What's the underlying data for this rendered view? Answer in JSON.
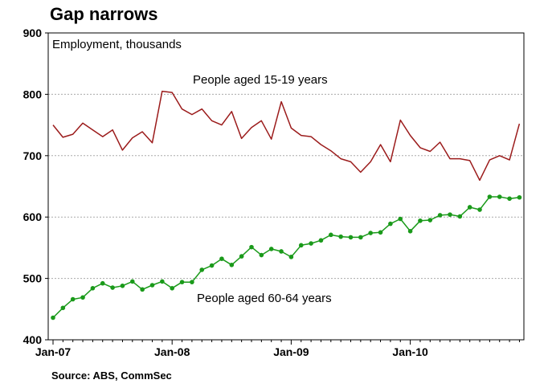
{
  "title": "Gap narrows",
  "source": "Source: ABS, CommSec",
  "colors": {
    "series1": "#9b1b1b",
    "series2": "#1a9a1a",
    "grid": "#aaaaaa",
    "frame": "#000000"
  },
  "chart_data": {
    "type": "line",
    "title": "Gap narrows",
    "ylabel": "Employment, thousands",
    "ylim": [
      400,
      900
    ],
    "yticks": [
      "400",
      "500",
      "600",
      "700",
      "800",
      "900"
    ],
    "xticks": [
      "Jan-07",
      "Jan-08",
      "Jan-09",
      "Jan-10"
    ],
    "x_start": "Jan-07",
    "frequency": "monthly",
    "grid": true,
    "annotations": [
      "People aged 15-19 years",
      "People aged 60-64 years"
    ],
    "series": [
      {
        "name": "People aged 15-19 years",
        "marker": false,
        "values": [
          750,
          730,
          735,
          753,
          742,
          731,
          742,
          709,
          729,
          739,
          721,
          805,
          803,
          776,
          767,
          776,
          757,
          750,
          772,
          728,
          746,
          757,
          727,
          788,
          745,
          733,
          731,
          718,
          708,
          695,
          690,
          673,
          690,
          718,
          690,
          758,
          733,
          713,
          707,
          722,
          695,
          695,
          692,
          660,
          693,
          700,
          693,
          752
        ]
      },
      {
        "name": "People aged 60-64 years",
        "marker": true,
        "values": [
          436,
          452,
          466,
          469,
          484,
          492,
          485,
          488,
          495,
          482,
          489,
          495,
          484,
          494,
          494,
          514,
          521,
          532,
          522,
          536,
          551,
          538,
          548,
          544,
          535,
          554,
          557,
          562,
          571,
          568,
          567,
          567,
          574,
          575,
          589,
          597,
          577,
          594,
          595,
          603,
          604,
          601,
          616,
          612,
          633,
          633,
          630,
          632
        ]
      }
    ]
  }
}
